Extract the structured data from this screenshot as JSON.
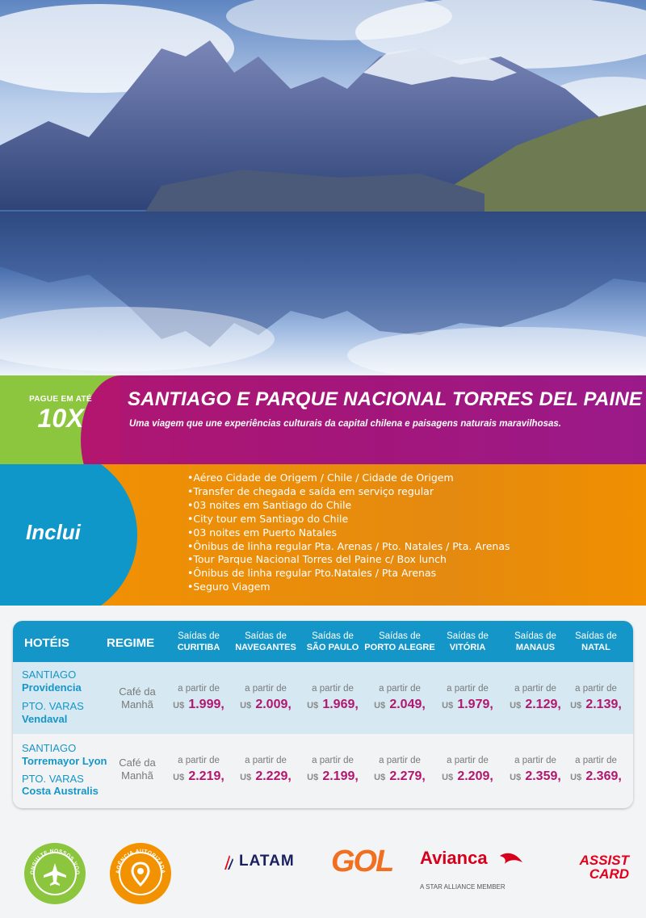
{
  "promo": {
    "pague_label": "PAGUE EM ATÉ",
    "installments": "10X"
  },
  "title": "SANTIAGO E PARQUE NACIONAL TORRES DEL PAINE",
  "subtitle": "Uma viagem que une experiências culturais da capital chilena e paisagens naturais maravilhosas.",
  "inclui": {
    "label": "Inclui",
    "items": [
      "Aéreo Cidade de Origem / Chile / Cidade de Origem",
      "Transfer de chegada e saída em serviço regular",
      "03 noites em Santiago do Chile",
      "City tour em Santiago do Chile",
      "03 noites em Puerto Natales",
      "Ônibus de linha regular Pta. Arenas / Pto. Natales / Pta. Arenas",
      "Tour Parque Nacional Torres del Paine c/ Box lunch",
      "Ônibus de linha regular Pto.Natales / Pta Arenas",
      "Seguro Viagem"
    ]
  },
  "table": {
    "hotels_header": "HOTÉIS",
    "regime_header": "REGIME",
    "columns": [
      {
        "top": "Saídas de",
        "city": "CURITIBA"
      },
      {
        "top": "Saídas de",
        "city": "NAVEGANTES"
      },
      {
        "top": "Saídas de",
        "city": "SÃO PAULO"
      },
      {
        "top": "Saídas de",
        "city": "PORTO ALEGRE"
      },
      {
        "top": "Saídas de",
        "city": "VITÓRIA"
      },
      {
        "top": "Saídas de",
        "city": "MANAUS"
      },
      {
        "top": "Saídas de",
        "city": "NATAL"
      }
    ],
    "rows": [
      {
        "city1": "SANTIAGO",
        "hotel1": "Providencia",
        "city2": "PTO. VARAS",
        "hotel2": "Vendaval",
        "regime": "Café da Manhã",
        "from_label": "a partir de",
        "currency": "U$",
        "prices": [
          "1.999,",
          "2.009,",
          "1.969,",
          "2.049,",
          "1.979,",
          "2.129,",
          "2.139,"
        ]
      },
      {
        "city1": "SANTIAGO",
        "hotel1": "Torremayor Lyon",
        "city2": "PTO. VARAS",
        "hotel2": "Costa Australis",
        "regime": "Café da Manhã",
        "from_label": "a partir de",
        "currency": "U$",
        "prices": [
          "2.219,",
          "2.229,",
          "2.199,",
          "2.279,",
          "2.209,",
          "2.359,",
          "2.369,"
        ]
      }
    ]
  },
  "footer": {
    "badge1_text": "CONSULTE NOSSOS VOOS",
    "badge2_text": "AGÊNCIA AUTORIZADA",
    "logos": {
      "latam": "LATAM",
      "gol": "GOL",
      "avianca": "Avianca",
      "avianca_tagline": "A STAR ALLIANCE MEMBER",
      "assist_line1": "ASSIST",
      "assist_line2": "CARD"
    },
    "colors": {
      "magenta": "#b3166f",
      "green": "#8cc63e",
      "orange": "#f39200",
      "blue": "#1596c9"
    }
  }
}
